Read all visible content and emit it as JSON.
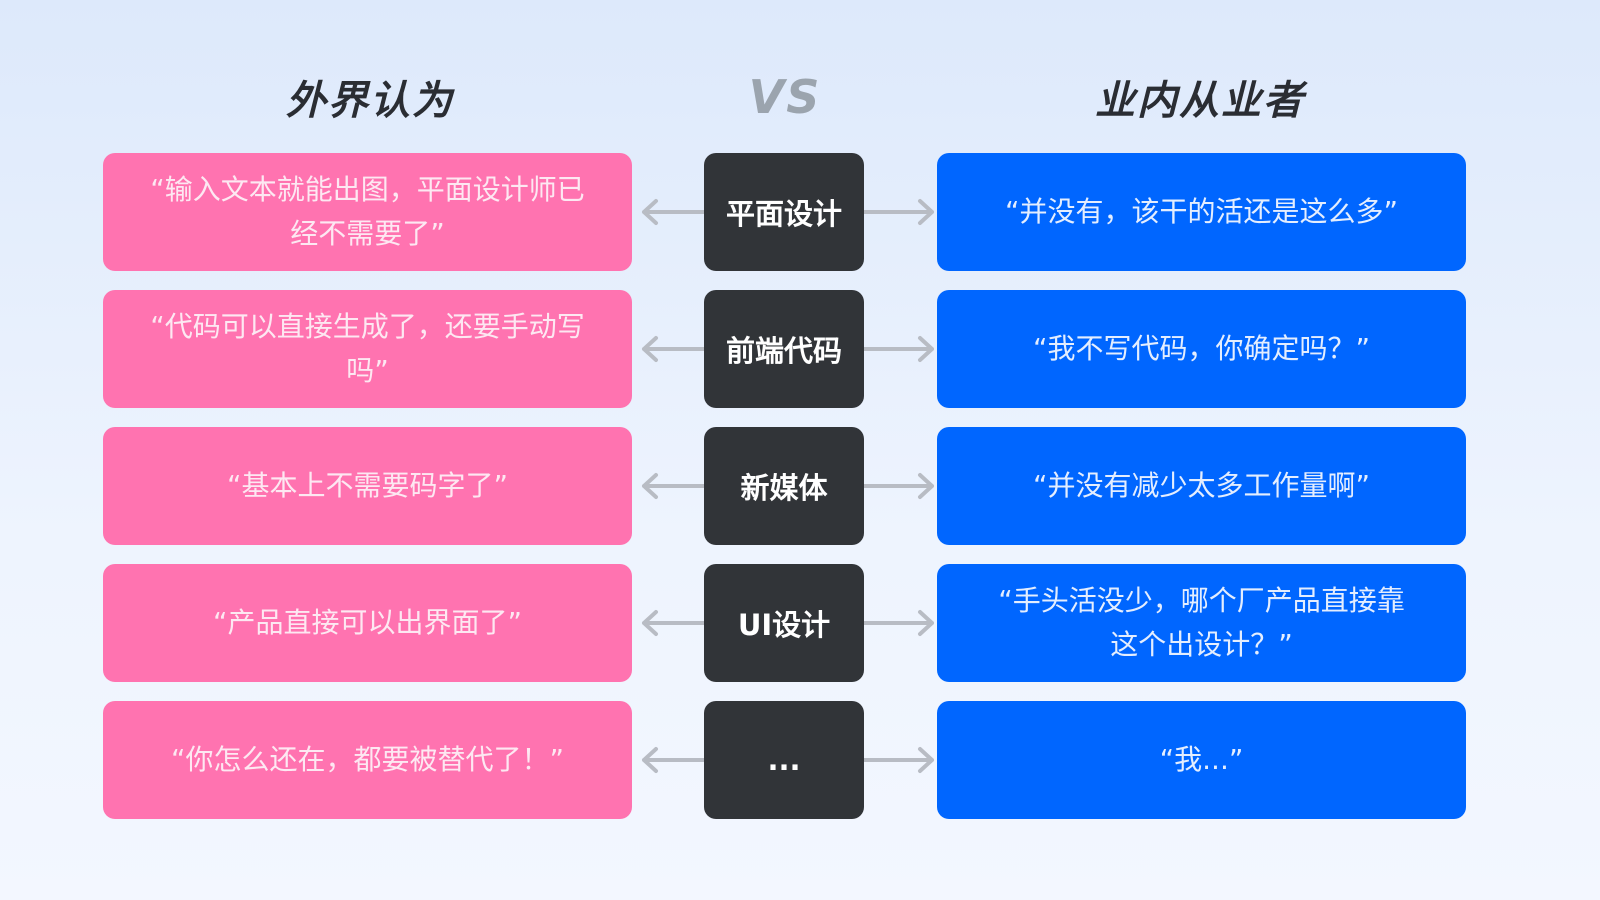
{
  "header": {
    "left": "外界认为",
    "vs": "VS",
    "right": "业内从业者"
  },
  "colors": {
    "pink": "#ff73b0",
    "dark": "#313438",
    "blue": "#0066ff",
    "arrow": "#b8bcc4"
  },
  "rows": [
    {
      "left": "“输入文本就能出图，平面设计师已经不需要了”",
      "topic": "平面设计",
      "right": "“并没有，该干的活还是这么多”"
    },
    {
      "left": "“代码可以直接生成了，还要手动写吗”",
      "topic": "前端代码",
      "right": "“我不写代码，你确定吗？”"
    },
    {
      "left": "“基本上不需要码字了”",
      "topic": "新媒体",
      "right": "“并没有减少太多工作量啊”"
    },
    {
      "left": "“产品直接可以出界面了”",
      "topic": "UI设计",
      "right": "“手头活没少，哪个厂产品直接靠这个出设计？”"
    },
    {
      "left": "“你怎么还在，都要被替代了！”",
      "topic": "...",
      "right": "“我...”"
    }
  ]
}
